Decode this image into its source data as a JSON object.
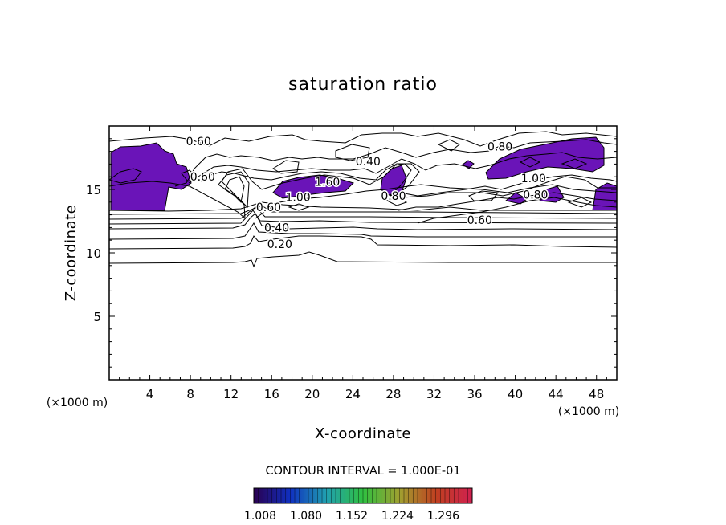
{
  "chart_data": {
    "type": "contour",
    "title": "saturation ratio",
    "xlabel": "X-coordinate",
    "ylabel": "Z-coordinate",
    "x_unit": "(×1000 m)",
    "y_unit": "(×1000 m)",
    "xlim": [
      0,
      50
    ],
    "ylim": [
      0,
      20
    ],
    "xticks": [
      4,
      8,
      12,
      16,
      20,
      24,
      28,
      32,
      36,
      40,
      44,
      48
    ],
    "yticks": [
      5,
      10,
      15
    ],
    "contour_interval_text": "CONTOUR INTERVAL = 1.000E-01",
    "contour_labels": [
      {
        "text": "0.60",
        "x": 8.8,
        "z": 18.8
      },
      {
        "text": "0.60",
        "x": 9.2,
        "z": 16.0
      },
      {
        "text": "0.40",
        "x": 25.5,
        "z": 17.2
      },
      {
        "text": "0.80",
        "x": 38.5,
        "z": 18.4
      },
      {
        "text": "1.00",
        "x": 41.8,
        "z": 15.9
      },
      {
        "text": "0.80",
        "x": 42.0,
        "z": 14.6
      },
      {
        "text": "0.60",
        "x": 36.5,
        "z": 12.6
      },
      {
        "text": "1.00",
        "x": 18.6,
        "z": 14.4
      },
      {
        "text": "1.60",
        "x": 21.5,
        "z": 15.6
      },
      {
        "text": "0.80",
        "x": 28.0,
        "z": 14.5
      },
      {
        "text": "0.60",
        "x": 15.7,
        "z": 13.6
      },
      {
        "text": "0.40",
        "x": 16.5,
        "z": 12.0
      },
      {
        "text": "0.20",
        "x": 16.8,
        "z": 10.7
      }
    ],
    "shaded_threshold": 1.008,
    "colorbar": {
      "labels": [
        "1.008",
        "1.080",
        "1.152",
        "1.224",
        "1.296"
      ]
    },
    "colors": {
      "shade": "#6a14b8",
      "colorbar_stops": [
        "#2a0050",
        "#1030c0",
        "#20a0b0",
        "#30c040",
        "#a0a030",
        "#c04020",
        "#d02050"
      ]
    }
  }
}
